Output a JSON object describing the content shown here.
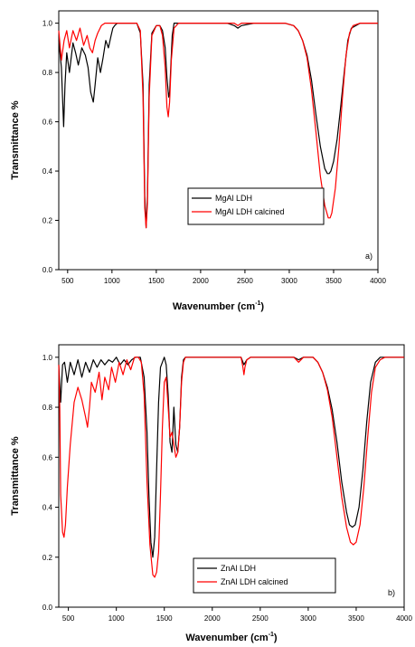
{
  "chart_data": [
    {
      "type": "line",
      "panel_label": "a)",
      "xlabel": "Wavenumber (cm",
      "xlabel_superscript": "-1",
      "xlabel_suffix": ")",
      "ylabel": "Transmittance %",
      "xlim": [
        400,
        4000
      ],
      "ylim": [
        0.0,
        1.05
      ],
      "xticks": [
        500,
        1000,
        1500,
        2000,
        2500,
        3000,
        3500,
        4000
      ],
      "xtick_labels": [
        "500",
        "1000",
        "1500",
        "2000",
        "2500",
        "3000",
        "3500",
        "4000"
      ],
      "yticks": [
        0.0,
        0.2,
        0.4,
        0.6,
        0.8,
        1.0
      ],
      "ytick_labels": [
        "0.0",
        "0.2",
        "0.4",
        "0.6",
        "0.8",
        "1.0"
      ],
      "legend_position": "center-right",
      "grid": false,
      "series": [
        {
          "name": "MgAl LDH",
          "color": "#000000",
          "x": [
            400,
            430,
            455,
            470,
            490,
            520,
            560,
            590,
            620,
            660,
            700,
            730,
            760,
            790,
            810,
            840,
            870,
            900,
            930,
            960,
            990,
            1010,
            1030,
            1060,
            1100,
            1200,
            1280,
            1320,
            1350,
            1370,
            1385,
            1400,
            1420,
            1450,
            1500,
            1540,
            1570,
            1600,
            1620,
            1640,
            1650,
            1660,
            1680,
            1700,
            1750,
            1800,
            2000,
            2300,
            2380,
            2420,
            2460,
            2600,
            2800,
            2950,
            3050,
            3100,
            3150,
            3200,
            3250,
            3300,
            3350,
            3400,
            3430,
            3450,
            3470,
            3500,
            3540,
            3580,
            3620,
            3660,
            3700,
            3800,
            4000
          ],
          "y": [
            0.93,
            0.82,
            0.58,
            0.75,
            0.88,
            0.8,
            0.92,
            0.88,
            0.83,
            0.9,
            0.87,
            0.82,
            0.72,
            0.68,
            0.75,
            0.86,
            0.8,
            0.86,
            0.93,
            0.9,
            0.95,
            0.98,
            0.99,
            1.0,
            1.0,
            1.0,
            1.0,
            0.96,
            0.75,
            0.3,
            0.17,
            0.3,
            0.75,
            0.96,
            0.99,
            0.99,
            0.97,
            0.9,
            0.78,
            0.7,
            0.72,
            0.8,
            0.95,
            1.0,
            1.0,
            1.0,
            1.0,
            1.0,
            0.99,
            0.98,
            0.99,
            1.0,
            1.0,
            1.0,
            0.99,
            0.97,
            0.93,
            0.87,
            0.77,
            0.63,
            0.5,
            0.41,
            0.39,
            0.39,
            0.4,
            0.44,
            0.53,
            0.66,
            0.8,
            0.93,
            0.98,
            1.0,
            1.0
          ]
        },
        {
          "name": "MgAl LDH calcined",
          "color": "#ff0000",
          "x": [
            400,
            430,
            460,
            490,
            520,
            560,
            600,
            640,
            680,
            720,
            750,
            780,
            810,
            840,
            880,
            920,
            960,
            1000,
            1100,
            1200,
            1280,
            1320,
            1350,
            1370,
            1385,
            1400,
            1420,
            1450,
            1500,
            1540,
            1570,
            1600,
            1620,
            1635,
            1650,
            1670,
            1700,
            1750,
            1800,
            2000,
            2300,
            2380,
            2420,
            2460,
            2600,
            2800,
            2950,
            3050,
            3100,
            3150,
            3200,
            3250,
            3300,
            3350,
            3400,
            3440,
            3460,
            3480,
            3520,
            3560,
            3600,
            3640,
            3680,
            3720,
            3800,
            4000
          ],
          "y": [
            0.97,
            0.85,
            0.93,
            0.97,
            0.9,
            0.97,
            0.93,
            0.98,
            0.91,
            0.95,
            0.9,
            0.88,
            0.93,
            0.96,
            0.99,
            1.0,
            1.0,
            1.0,
            1.0,
            1.0,
            1.0,
            0.97,
            0.7,
            0.25,
            0.17,
            0.27,
            0.7,
            0.95,
            0.99,
            0.99,
            0.95,
            0.82,
            0.66,
            0.62,
            0.68,
            0.85,
            0.98,
            1.0,
            1.0,
            1.0,
            1.0,
            1.0,
            0.99,
            1.0,
            1.0,
            1.0,
            1.0,
            0.99,
            0.97,
            0.93,
            0.86,
            0.73,
            0.56,
            0.38,
            0.26,
            0.21,
            0.21,
            0.23,
            0.33,
            0.5,
            0.7,
            0.87,
            0.96,
            0.99,
            1.0,
            1.0
          ]
        }
      ]
    },
    {
      "type": "line",
      "panel_label": "b)",
      "xlabel": "Wavenumber (cm",
      "xlabel_superscript": "-1",
      "xlabel_suffix": ")",
      "ylabel": "Transmittance %",
      "xlim": [
        400,
        4000
      ],
      "ylim": [
        0.0,
        1.05
      ],
      "xticks": [
        500,
        1000,
        1500,
        2000,
        2500,
        3000,
        3500,
        4000
      ],
      "xtick_labels": [
        "500",
        "1000",
        "1500",
        "2000",
        "2500",
        "3000",
        "3500",
        "4000"
      ],
      "yticks": [
        0.0,
        0.2,
        0.4,
        0.6,
        0.8,
        1.0
      ],
      "ytick_labels": [
        "0.0",
        "0.2",
        "0.4",
        "0.6",
        "0.8",
        "1.0"
      ],
      "legend_position": "bottom-center",
      "grid": false,
      "series": [
        {
          "name": "ZnAl LDH",
          "color": "#000000",
          "x": [
            400,
            420,
            440,
            460,
            490,
            520,
            560,
            600,
            640,
            680,
            720,
            760,
            800,
            840,
            880,
            920,
            960,
            1000,
            1040,
            1080,
            1120,
            1160,
            1200,
            1250,
            1290,
            1320,
            1340,
            1360,
            1380,
            1400,
            1420,
            1440,
            1460,
            1480,
            1500,
            1520,
            1540,
            1560,
            1580,
            1600,
            1620,
            1640,
            1660,
            1680,
            1700,
            1720,
            1800,
            2000,
            2300,
            2330,
            2360,
            2400,
            2600,
            2850,
            2900,
            2950,
            3050,
            3100,
            3150,
            3200,
            3250,
            3300,
            3350,
            3400,
            3430,
            3460,
            3490,
            3530,
            3570,
            3610,
            3650,
            3700,
            3750,
            3800,
            4000
          ],
          "y": [
            0.97,
            0.82,
            0.97,
            0.98,
            0.9,
            0.98,
            0.93,
            0.99,
            0.92,
            0.98,
            0.94,
            0.99,
            0.96,
            0.99,
            0.97,
            0.99,
            0.98,
            1.0,
            0.97,
            0.99,
            0.97,
            0.99,
            1.0,
            1.0,
            0.92,
            0.7,
            0.45,
            0.26,
            0.2,
            0.28,
            0.55,
            0.82,
            0.96,
            0.98,
            1.0,
            0.97,
            0.85,
            0.66,
            0.62,
            0.8,
            0.65,
            0.62,
            0.72,
            0.92,
            0.99,
            1.0,
            1.0,
            1.0,
            1.0,
            0.97,
            0.99,
            1.0,
            1.0,
            1.0,
            0.99,
            1.0,
            1.0,
            0.98,
            0.94,
            0.88,
            0.79,
            0.66,
            0.5,
            0.38,
            0.33,
            0.32,
            0.33,
            0.4,
            0.55,
            0.74,
            0.9,
            0.98,
            1.0,
            1.0,
            1.0
          ]
        },
        {
          "name": "ZnAl LDH calcined",
          "color": "#ff0000",
          "x": [
            400,
            410,
            420,
            440,
            455,
            470,
            490,
            520,
            560,
            600,
            640,
            680,
            700,
            720,
            740,
            780,
            820,
            850,
            880,
            920,
            950,
            990,
            1030,
            1070,
            1110,
            1150,
            1190,
            1230,
            1260,
            1290,
            1320,
            1350,
            1380,
            1400,
            1420,
            1440,
            1460,
            1480,
            1500,
            1520,
            1540,
            1560,
            1580,
            1600,
            1620,
            1640,
            1660,
            1680,
            1700,
            1720,
            1800,
            2000,
            2300,
            2320,
            2330,
            2340,
            2360,
            2400,
            2600,
            2850,
            2900,
            2950,
            3050,
            3100,
            3150,
            3200,
            3250,
            3300,
            3350,
            3400,
            3440,
            3470,
            3500,
            3540,
            3580,
            3620,
            3660,
            3700,
            3750,
            3800,
            4000
          ],
          "y": [
            0.97,
            0.8,
            0.45,
            0.3,
            0.28,
            0.33,
            0.48,
            0.65,
            0.82,
            0.88,
            0.83,
            0.76,
            0.72,
            0.8,
            0.9,
            0.86,
            0.94,
            0.83,
            0.92,
            0.87,
            0.96,
            0.9,
            0.98,
            0.93,
            0.99,
            0.95,
            1.0,
            1.0,
            0.98,
            0.85,
            0.5,
            0.25,
            0.13,
            0.12,
            0.14,
            0.22,
            0.45,
            0.72,
            0.9,
            0.92,
            0.8,
            0.68,
            0.7,
            0.65,
            0.6,
            0.62,
            0.72,
            0.9,
            0.98,
            1.0,
            1.0,
            1.0,
            1.0,
            0.96,
            0.93,
            0.96,
            0.99,
            1.0,
            1.0,
            1.0,
            0.98,
            1.0,
            1.0,
            0.98,
            0.94,
            0.87,
            0.76,
            0.6,
            0.44,
            0.32,
            0.26,
            0.25,
            0.26,
            0.33,
            0.48,
            0.68,
            0.86,
            0.96,
            0.99,
            1.0,
            1.0
          ]
        }
      ]
    }
  ]
}
